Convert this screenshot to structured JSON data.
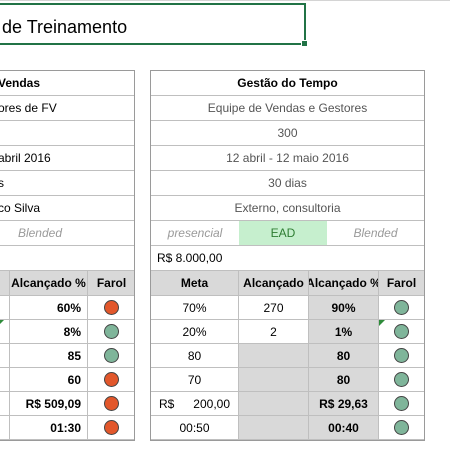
{
  "title": "de Treinamento",
  "left": {
    "header": "Vendas",
    "audience": "ores de FV",
    "date": "abril 2016",
    "duration": "s",
    "instructor": "co Silva",
    "modality": "Blended",
    "col_alcancado_pct": "Alcançado %",
    "col_farol": "Farol",
    "results": [
      {
        "pct": "60%",
        "farol": "red"
      },
      {
        "pct": "8%",
        "farol": "grn"
      },
      {
        "pct": "85",
        "farol": "grn"
      },
      {
        "pct": "60",
        "farol": "red"
      },
      {
        "pct": "R$   509,09",
        "farol": "red"
      },
      {
        "pct": "01:30",
        "farol": "red"
      }
    ]
  },
  "right": {
    "header": "Gestão do Tempo",
    "audience": "Equipe de Vendas e Gestores",
    "participants": "300",
    "dates": "12 abril - 12 maio 2016",
    "duration": "30 dias",
    "instructor": "Externo, consultoria",
    "modality": {
      "presencial": "presencial",
      "ead": "EAD",
      "blended": "Blended"
    },
    "budget": "R$  8.000,00",
    "col_meta": "Meta",
    "col_alcancado": "Alcançado",
    "col_alcancado_pct": "Alcançado %",
    "col_farol": "Farol",
    "results": [
      {
        "meta_pre": "",
        "meta": "70%",
        "alc": "270",
        "pct": "90%",
        "farol": "grn",
        "flag": false
      },
      {
        "meta_pre": "",
        "meta": "20%",
        "alc": "2",
        "pct": "1%",
        "farol": "grn",
        "flag": true
      },
      {
        "meta_pre": "",
        "meta": "80",
        "alc": "",
        "pct": "80",
        "farol": "grn",
        "flag": false
      },
      {
        "meta_pre": "",
        "meta": "70",
        "alc": "",
        "pct": "80",
        "farol": "grn",
        "flag": false
      },
      {
        "meta_pre": "R$",
        "meta": "200,00",
        "alc": "",
        "pct": "R$  29,63",
        "farol": "grn",
        "flag": false
      },
      {
        "meta_pre": "",
        "meta": "00:50",
        "alc": "",
        "pct": "00:40",
        "farol": "grn",
        "flag": false
      }
    ]
  },
  "colors": {
    "red": "#e2572b",
    "grn": "#7fb59a",
    "excel_green": "#217346"
  }
}
